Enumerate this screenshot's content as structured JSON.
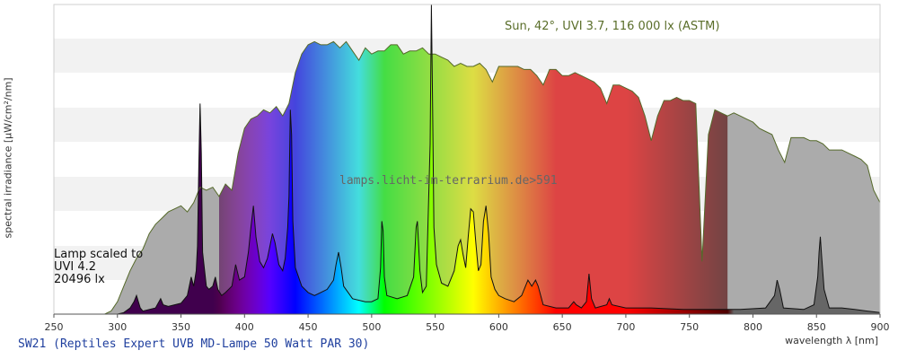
{
  "chart_data": {
    "type": "area",
    "title": "SW21 (Reptiles Expert UVB MD-Lampe 50 Watt PAR 30)",
    "xlabel": "wavelength λ [nm]",
    "ylabel": "spectral irradiance [µW/cm²/nm]",
    "xlim": [
      250,
      900
    ],
    "ylim": [
      0,
      100
    ],
    "x_ticks": [
      250,
      300,
      350,
      400,
      450,
      500,
      550,
      600,
      650,
      700,
      750,
      800,
      850,
      900
    ],
    "grid": "horizontal bands",
    "watermark": "lamps.licht-im-terrarium.de>591",
    "series": [
      {
        "name": "Sun, 42°, UVI 3.7, 116 000 lx (ASTM)",
        "color": "#aaaaaa",
        "line_color": "#55692a",
        "points": [
          [
            290,
            0
          ],
          [
            295,
            1
          ],
          [
            300,
            4
          ],
          [
            305,
            9
          ],
          [
            310,
            14
          ],
          [
            315,
            18
          ],
          [
            320,
            21
          ],
          [
            325,
            26
          ],
          [
            330,
            29
          ],
          [
            335,
            31
          ],
          [
            340,
            33
          ],
          [
            345,
            34
          ],
          [
            350,
            35
          ],
          [
            355,
            33
          ],
          [
            360,
            36
          ],
          [
            365,
            41
          ],
          [
            370,
            40
          ],
          [
            375,
            41
          ],
          [
            380,
            38
          ],
          [
            385,
            42
          ],
          [
            390,
            40
          ],
          [
            395,
            52
          ],
          [
            400,
            60
          ],
          [
            405,
            63
          ],
          [
            410,
            64
          ],
          [
            415,
            66
          ],
          [
            420,
            65
          ],
          [
            425,
            67
          ],
          [
            430,
            64
          ],
          [
            435,
            68
          ],
          [
            440,
            78
          ],
          [
            445,
            84
          ],
          [
            450,
            87
          ],
          [
            455,
            88
          ],
          [
            460,
            87
          ],
          [
            465,
            87
          ],
          [
            470,
            88
          ],
          [
            475,
            86
          ],
          [
            480,
            88
          ],
          [
            485,
            85
          ],
          [
            490,
            82
          ],
          [
            495,
            86
          ],
          [
            500,
            84
          ],
          [
            505,
            85
          ],
          [
            510,
            85
          ],
          [
            515,
            87
          ],
          [
            520,
            87
          ],
          [
            525,
            84
          ],
          [
            530,
            85
          ],
          [
            535,
            85
          ],
          [
            540,
            86
          ],
          [
            545,
            84
          ],
          [
            550,
            84
          ],
          [
            555,
            83
          ],
          [
            560,
            82
          ],
          [
            565,
            80
          ],
          [
            570,
            81
          ],
          [
            575,
            80
          ],
          [
            580,
            80
          ],
          [
            585,
            81
          ],
          [
            590,
            79
          ],
          [
            595,
            75
          ],
          [
            600,
            80
          ],
          [
            605,
            80
          ],
          [
            610,
            80
          ],
          [
            615,
            80
          ],
          [
            620,
            79
          ],
          [
            625,
            79
          ],
          [
            630,
            77
          ],
          [
            635,
            74
          ],
          [
            640,
            79
          ],
          [
            645,
            79
          ],
          [
            650,
            77
          ],
          [
            655,
            77
          ],
          [
            660,
            78
          ],
          [
            665,
            77
          ],
          [
            670,
            76
          ],
          [
            675,
            75
          ],
          [
            680,
            73
          ],
          [
            685,
            68
          ],
          [
            690,
            74
          ],
          [
            695,
            74
          ],
          [
            700,
            73
          ],
          [
            705,
            72
          ],
          [
            710,
            70
          ],
          [
            715,
            64
          ],
          [
            720,
            56
          ],
          [
            725,
            64
          ],
          [
            730,
            69
          ],
          [
            735,
            69
          ],
          [
            740,
            70
          ],
          [
            745,
            69
          ],
          [
            750,
            69
          ],
          [
            755,
            68
          ],
          [
            760,
            17
          ],
          [
            765,
            58
          ],
          [
            770,
            66
          ],
          [
            775,
            65
          ],
          [
            780,
            64
          ],
          [
            785,
            65
          ],
          [
            790,
            64
          ],
          [
            795,
            63
          ],
          [
            800,
            62
          ],
          [
            805,
            60
          ],
          [
            810,
            59
          ],
          [
            815,
            58
          ],
          [
            820,
            53
          ],
          [
            825,
            49
          ],
          [
            830,
            57
          ],
          [
            835,
            57
          ],
          [
            840,
            57
          ],
          [
            845,
            56
          ],
          [
            850,
            56
          ],
          [
            855,
            55
          ],
          [
            860,
            53
          ],
          [
            865,
            53
          ],
          [
            870,
            53
          ],
          [
            875,
            52
          ],
          [
            880,
            51
          ],
          [
            885,
            50
          ],
          [
            890,
            48
          ],
          [
            895,
            40
          ],
          [
            900,
            36
          ]
        ]
      },
      {
        "name": "Lamp scaled to UVI 4.2",
        "color": "spectral",
        "line_color": "#111111",
        "points": [
          [
            280,
            0
          ],
          [
            300,
            0
          ],
          [
            305,
            0.5
          ],
          [
            310,
            2
          ],
          [
            313,
            4
          ],
          [
            315,
            6
          ],
          [
            318,
            2
          ],
          [
            320,
            1
          ],
          [
            325,
            1.5
          ],
          [
            330,
            2
          ],
          [
            334,
            5
          ],
          [
            336,
            3
          ],
          [
            340,
            2.5
          ],
          [
            345,
            3
          ],
          [
            350,
            3.5
          ],
          [
            355,
            6
          ],
          [
            358,
            12
          ],
          [
            360,
            9
          ],
          [
            362,
            14
          ],
          [
            363,
            22
          ],
          [
            364,
            48
          ],
          [
            365,
            68
          ],
          [
            366,
            52
          ],
          [
            367,
            20
          ],
          [
            370,
            9
          ],
          [
            372,
            8
          ],
          [
            375,
            9
          ],
          [
            377,
            12
          ],
          [
            379,
            8
          ],
          [
            382,
            6
          ],
          [
            385,
            7
          ],
          [
            390,
            9
          ],
          [
            393,
            16
          ],
          [
            396,
            11
          ],
          [
            400,
            12
          ],
          [
            403,
            20
          ],
          [
            405,
            28
          ],
          [
            407,
            35
          ],
          [
            409,
            25
          ],
          [
            412,
            17
          ],
          [
            415,
            15
          ],
          [
            418,
            18
          ],
          [
            420,
            22
          ],
          [
            422,
            26
          ],
          [
            424,
            23
          ],
          [
            427,
            16
          ],
          [
            430,
            14
          ],
          [
            432,
            18
          ],
          [
            434,
            28
          ],
          [
            435,
            38
          ],
          [
            436,
            66
          ],
          [
            437,
            58
          ],
          [
            438,
            30
          ],
          [
            440,
            15
          ],
          [
            445,
            9
          ],
          [
            450,
            7
          ],
          [
            455,
            6
          ],
          [
            460,
            7
          ],
          [
            465,
            8
          ],
          [
            470,
            11
          ],
          [
            472,
            16
          ],
          [
            474,
            20
          ],
          [
            476,
            15
          ],
          [
            478,
            9
          ],
          [
            485,
            5
          ],
          [
            495,
            4
          ],
          [
            500,
            4
          ],
          [
            505,
            5
          ],
          [
            507,
            15
          ],
          [
            508,
            30
          ],
          [
            509,
            27
          ],
          [
            510,
            12
          ],
          [
            512,
            6
          ],
          [
            520,
            5
          ],
          [
            528,
            6
          ],
          [
            533,
            12
          ],
          [
            535,
            28
          ],
          [
            536,
            30
          ],
          [
            538,
            14
          ],
          [
            540,
            7
          ],
          [
            543,
            9
          ],
          [
            546,
            55
          ],
          [
            547,
            100
          ],
          [
            548,
            66
          ],
          [
            549,
            28
          ],
          [
            551,
            16
          ],
          [
            555,
            10
          ],
          [
            560,
            9
          ],
          [
            565,
            14
          ],
          [
            568,
            22
          ],
          [
            570,
            24
          ],
          [
            572,
            19
          ],
          [
            574,
            15
          ],
          [
            576,
            25
          ],
          [
            578,
            34
          ],
          [
            580,
            33
          ],
          [
            582,
            23
          ],
          [
            584,
            14
          ],
          [
            586,
            16
          ],
          [
            588,
            30
          ],
          [
            590,
            35
          ],
          [
            592,
            26
          ],
          [
            594,
            12
          ],
          [
            597,
            8
          ],
          [
            600,
            6
          ],
          [
            605,
            5
          ],
          [
            612,
            4
          ],
          [
            618,
            6
          ],
          [
            620,
            8
          ],
          [
            623,
            11
          ],
          [
            626,
            9
          ],
          [
            629,
            11
          ],
          [
            631,
            9
          ],
          [
            635,
            3
          ],
          [
            645,
            2
          ],
          [
            655,
            2
          ],
          [
            657,
            3
          ],
          [
            659,
            4
          ],
          [
            661,
            3
          ],
          [
            665,
            2
          ],
          [
            669,
            4
          ],
          [
            671,
            13
          ],
          [
            673,
            5
          ],
          [
            676,
            2
          ],
          [
            685,
            3
          ],
          [
            687,
            5
          ],
          [
            689,
            3
          ],
          [
            700,
            2
          ],
          [
            720,
            2
          ],
          [
            745,
            1.5
          ],
          [
            760,
            1.5
          ],
          [
            790,
            1.5
          ],
          [
            810,
            2
          ],
          [
            817,
            6
          ],
          [
            819,
            11
          ],
          [
            821,
            8
          ],
          [
            824,
            2
          ],
          [
            840,
            1.5
          ],
          [
            848,
            3
          ],
          [
            851,
            12
          ],
          [
            852,
            20
          ],
          [
            853,
            25
          ],
          [
            854,
            19
          ],
          [
            856,
            8
          ],
          [
            860,
            2
          ],
          [
            870,
            2
          ],
          [
            880,
            1.5
          ],
          [
            890,
            1
          ],
          [
            900,
            0.5
          ]
        ]
      }
    ]
  },
  "labels": {
    "sun": "Sun, 42°, UVI 3.7, 116 000 lx (ASTM)",
    "lamp_line1": "Lamp scaled to",
    "lamp_line2": "UVI 4.2",
    "lamp_line3": "20496 lx"
  }
}
